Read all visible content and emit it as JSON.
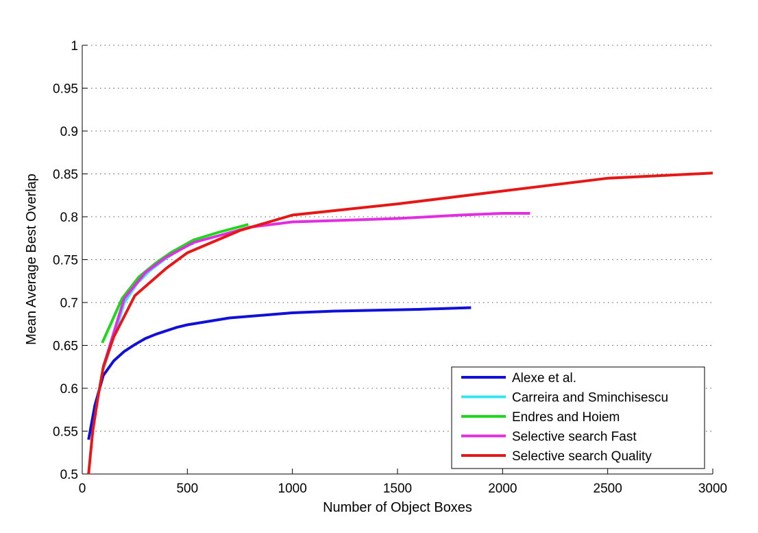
{
  "chart_data": {
    "type": "line",
    "title": "",
    "xlabel": "Number of Object Boxes",
    "ylabel": "Mean Average Best Overlap",
    "xlim": [
      0,
      3000
    ],
    "ylim": [
      0.5,
      1
    ],
    "xticks": [
      0,
      500,
      1000,
      1500,
      2000,
      2500,
      3000
    ],
    "yticks": [
      0.5,
      0.55,
      0.6,
      0.65,
      0.7,
      0.75,
      0.8,
      0.85,
      0.9,
      0.95,
      1
    ],
    "xtick_labels": [
      "0",
      "500",
      "1000",
      "1500",
      "2000",
      "2500",
      "3000"
    ],
    "ytick_labels": [
      "0.5",
      "0.55",
      "0.6",
      "0.65",
      "0.7",
      "0.75",
      "0.8",
      "0.85",
      "0.9",
      "0.95",
      "1"
    ],
    "grid": "horizontal-dotted",
    "legend_position": "bottom-right",
    "series": [
      {
        "name": "Alexe et al.",
        "color": "#1010d8",
        "points": [
          [
            30,
            0.54
          ],
          [
            60,
            0.58
          ],
          [
            100,
            0.615
          ],
          [
            150,
            0.632
          ],
          [
            200,
            0.643
          ],
          [
            250,
            0.651
          ],
          [
            300,
            0.658
          ],
          [
            350,
            0.663
          ],
          [
            400,
            0.667
          ],
          [
            450,
            0.671
          ],
          [
            500,
            0.674
          ],
          [
            600,
            0.678
          ],
          [
            700,
            0.682
          ],
          [
            800,
            0.684
          ],
          [
            900,
            0.686
          ],
          [
            1000,
            0.688
          ],
          [
            1200,
            0.69
          ],
          [
            1400,
            0.691
          ],
          [
            1600,
            0.692
          ],
          [
            1850,
            0.694
          ]
        ]
      },
      {
        "name": "Carreira and Sminchisescu",
        "color": "#33e5f2",
        "points": [
          [
            100,
            0.622
          ],
          [
            150,
            0.66
          ],
          [
            200,
            0.7
          ],
          [
            260,
            0.722
          ],
          [
            320,
            0.737
          ],
          [
            400,
            0.752
          ],
          [
            500,
            0.767
          ],
          [
            530,
            0.769
          ]
        ]
      },
      {
        "name": "Endres and Hoiem",
        "color": "#1ed81e",
        "points": [
          [
            95,
            0.653
          ],
          [
            190,
            0.705
          ],
          [
            270,
            0.73
          ],
          [
            350,
            0.746
          ],
          [
            420,
            0.758
          ],
          [
            530,
            0.773
          ],
          [
            650,
            0.782
          ],
          [
            790,
            0.791
          ]
        ]
      },
      {
        "name": "Selective search Fast",
        "color": "#e02ee0",
        "points": [
          [
            100,
            0.625
          ],
          [
            200,
            0.705
          ],
          [
            300,
            0.735
          ],
          [
            400,
            0.753
          ],
          [
            530,
            0.77
          ],
          [
            650,
            0.778
          ],
          [
            800,
            0.788
          ],
          [
            1000,
            0.794
          ],
          [
            1500,
            0.798
          ],
          [
            1800,
            0.802
          ],
          [
            2000,
            0.804
          ],
          [
            2130,
            0.804
          ]
        ]
      },
      {
        "name": "Selective search Quality",
        "color": "#e61717",
        "points": [
          [
            30,
            0.5
          ],
          [
            50,
            0.55
          ],
          [
            75,
            0.59
          ],
          [
            100,
            0.625
          ],
          [
            150,
            0.66
          ],
          [
            250,
            0.708
          ],
          [
            400,
            0.74
          ],
          [
            500,
            0.758
          ],
          [
            750,
            0.784
          ],
          [
            1000,
            0.802
          ],
          [
            1500,
            0.815
          ],
          [
            2000,
            0.83
          ],
          [
            2500,
            0.845
          ],
          [
            3000,
            0.851
          ]
        ]
      }
    ]
  }
}
